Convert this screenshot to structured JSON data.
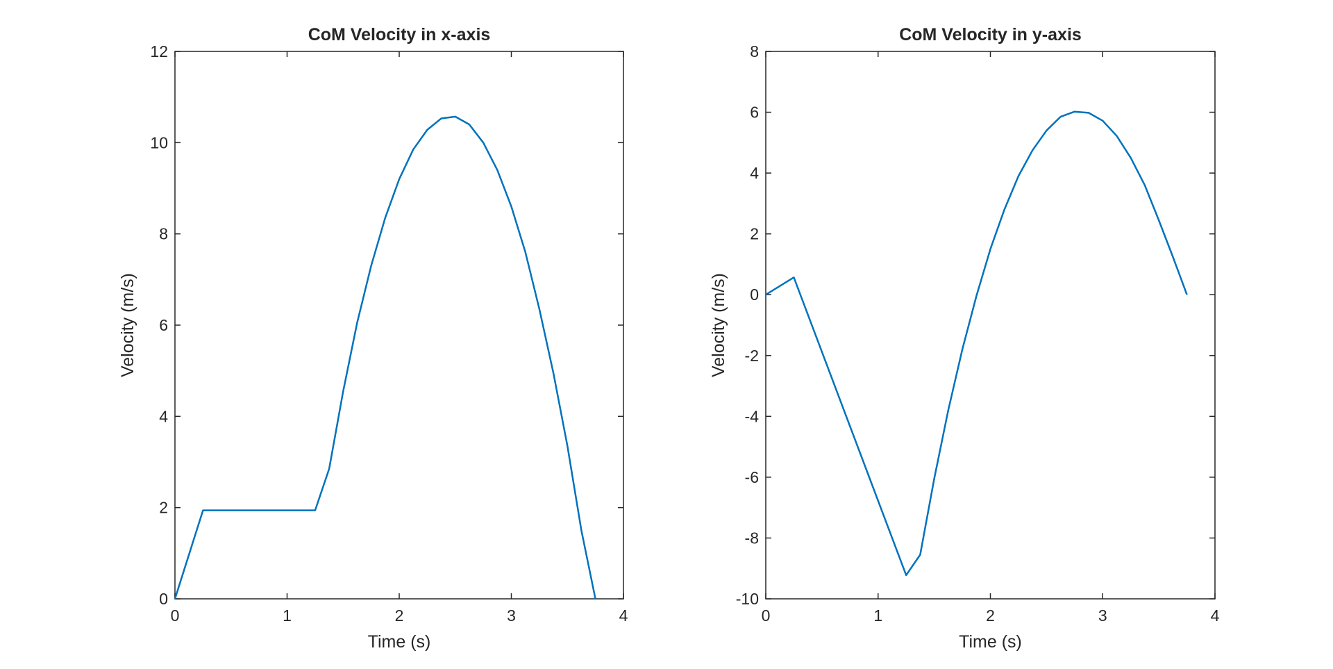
{
  "chart_data": [
    {
      "type": "line",
      "title": "CoM Velocity in x-axis",
      "xlabel": "Time (s)",
      "ylabel": "Velocity (m/s)",
      "xlim": [
        0,
        4
      ],
      "ylim": [
        0,
        12
      ],
      "xticks": [
        0,
        1,
        2,
        3,
        4
      ],
      "yticks": [
        0,
        2,
        4,
        6,
        8,
        10,
        12
      ],
      "grid": false,
      "line_color": "#0072BD",
      "series": [
        {
          "x": [
            0,
            0.25,
            0.5,
            0.75,
            1.0,
            1.25,
            1.375,
            1.5,
            1.625,
            1.75,
            1.875,
            2.0,
            2.125,
            2.25,
            2.375,
            2.5,
            2.625,
            2.75,
            2.875,
            3.0,
            3.125,
            3.25,
            3.375,
            3.5,
            3.625,
            3.75
          ],
          "y": [
            0,
            1.94,
            1.94,
            1.94,
            1.94,
            1.94,
            2.85,
            4.55,
            6.05,
            7.3,
            8.35,
            9.2,
            9.85,
            10.28,
            10.53,
            10.57,
            10.4,
            10.0,
            9.4,
            8.6,
            7.6,
            6.35,
            4.95,
            3.35,
            1.5,
            0
          ]
        }
      ]
    },
    {
      "type": "line",
      "title": "CoM Velocity in y-axis",
      "xlabel": "Time (s)",
      "ylabel": "Velocity (m/s)",
      "xlim": [
        0,
        4
      ],
      "ylim": [
        -10,
        8
      ],
      "xticks": [
        0,
        1,
        2,
        3,
        4
      ],
      "yticks": [
        -10,
        -8,
        -6,
        -4,
        -2,
        0,
        2,
        4,
        6,
        8
      ],
      "grid": false,
      "line_color": "#0072BD",
      "series": [
        {
          "x": [
            0,
            0.25,
            1.25,
            1.375,
            1.5,
            1.625,
            1.75,
            1.875,
            2.0,
            2.125,
            2.25,
            2.375,
            2.5,
            2.625,
            2.75,
            2.875,
            3.0,
            3.125,
            3.25,
            3.375,
            3.5,
            3.625,
            3.75
          ],
          "y": [
            0,
            0.57,
            -9.22,
            -8.55,
            -6.05,
            -3.8,
            -1.8,
            -0.05,
            1.5,
            2.8,
            3.9,
            4.75,
            5.4,
            5.85,
            6.02,
            5.98,
            5.72,
            5.22,
            4.5,
            3.6,
            2.45,
            1.25,
            0
          ]
        }
      ]
    }
  ]
}
